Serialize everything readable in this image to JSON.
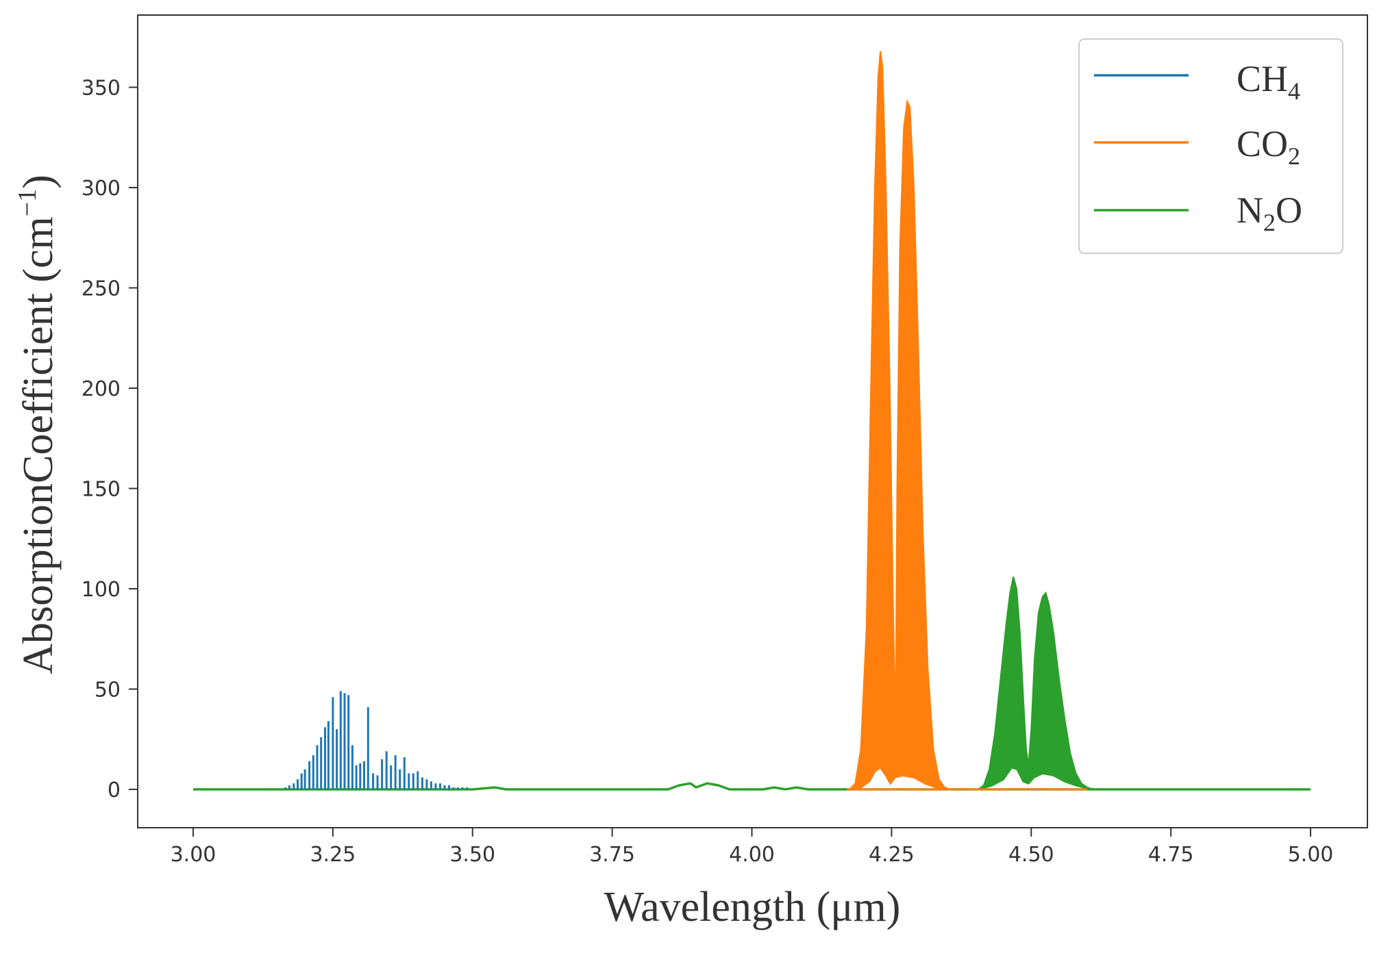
{
  "chart_data": {
    "type": "line",
    "xlabel": "Wavelength (μm)",
    "ylabel": "AbsorptionCoefficient (cm",
    "ylabel_superscript": "−1",
    "ylabel_close": ")",
    "xlim": [
      3.0,
      5.0
    ],
    "ylim": [
      0,
      375
    ],
    "xticks": [
      "3.00",
      "3.25",
      "3.50",
      "3.75",
      "4.00",
      "4.25",
      "4.50",
      "4.75",
      "5.00"
    ],
    "xtick_values": [
      3.0,
      3.25,
      3.5,
      3.75,
      4.0,
      4.25,
      4.5,
      4.75,
      5.0
    ],
    "yticks": [
      "0",
      "50",
      "100",
      "150",
      "200",
      "250",
      "300",
      "350"
    ],
    "ytick_values": [
      0,
      50,
      100,
      150,
      200,
      250,
      300,
      350
    ],
    "grid": false,
    "legend_position": "top-right",
    "series": [
      {
        "name": "CH4",
        "label_main": "CH",
        "label_sub": "4",
        "color": "#1f77b4",
        "style": "dense-lines",
        "lines": [
          [
            3.165,
            1
          ],
          [
            3.172,
            2
          ],
          [
            3.18,
            3
          ],
          [
            3.187,
            5
          ],
          [
            3.194,
            8
          ],
          [
            3.2,
            10
          ],
          [
            3.208,
            14
          ],
          [
            3.215,
            17
          ],
          [
            3.222,
            22
          ],
          [
            3.229,
            26
          ],
          [
            3.236,
            31
          ],
          [
            3.242,
            34
          ],
          [
            3.25,
            46
          ],
          [
            3.257,
            30
          ],
          [
            3.264,
            49
          ],
          [
            3.271,
            48
          ],
          [
            3.278,
            47
          ],
          [
            3.285,
            22
          ],
          [
            3.292,
            12
          ],
          [
            3.299,
            13
          ],
          [
            3.306,
            14
          ],
          [
            3.313,
            41
          ],
          [
            3.322,
            8
          ],
          [
            3.33,
            7
          ],
          [
            3.338,
            15
          ],
          [
            3.346,
            19
          ],
          [
            3.354,
            12
          ],
          [
            3.362,
            17
          ],
          [
            3.37,
            10
          ],
          [
            3.378,
            16
          ],
          [
            3.386,
            8
          ],
          [
            3.394,
            8
          ],
          [
            3.402,
            9
          ],
          [
            3.41,
            6
          ],
          [
            3.418,
            5
          ],
          [
            3.426,
            4
          ],
          [
            3.434,
            3
          ],
          [
            3.442,
            3
          ],
          [
            3.45,
            2
          ],
          [
            3.458,
            2
          ],
          [
            3.466,
            1
          ],
          [
            3.474,
            1
          ],
          [
            3.482,
            1
          ],
          [
            3.49,
            1
          ]
        ]
      },
      {
        "name": "CO2",
        "label_main": "CO",
        "label_sub": "2",
        "color": "#ff7f0e",
        "style": "filled-band",
        "upper": [
          [
            4.175,
            0
          ],
          [
            4.185,
            3
          ],
          [
            4.195,
            20
          ],
          [
            4.205,
            80
          ],
          [
            4.213,
            200
          ],
          [
            4.22,
            300
          ],
          [
            4.226,
            355
          ],
          [
            4.23,
            368
          ],
          [
            4.234,
            360
          ],
          [
            4.24,
            300
          ],
          [
            4.247,
            200
          ],
          [
            4.253,
            90
          ],
          [
            4.257,
            30
          ],
          [
            4.26,
            150
          ],
          [
            4.265,
            270
          ],
          [
            4.272,
            330
          ],
          [
            4.278,
            343
          ],
          [
            4.283,
            340
          ],
          [
            4.29,
            300
          ],
          [
            4.298,
            220
          ],
          [
            4.306,
            130
          ],
          [
            4.315,
            60
          ],
          [
            4.325,
            20
          ],
          [
            4.335,
            5
          ],
          [
            4.345,
            1
          ],
          [
            4.355,
            0
          ]
        ],
        "lower": [
          [
            4.175,
            0
          ],
          [
            4.195,
            1
          ],
          [
            4.21,
            4
          ],
          [
            4.22,
            9
          ],
          [
            4.23,
            11
          ],
          [
            4.24,
            7
          ],
          [
            4.248,
            3
          ],
          [
            4.256,
            6
          ],
          [
            4.27,
            7
          ],
          [
            4.29,
            6
          ],
          [
            4.31,
            3
          ],
          [
            4.33,
            1
          ],
          [
            4.355,
            0
          ]
        ]
      },
      {
        "name": "N2O",
        "label_main": "N",
        "label_sub": "2",
        "label_tail": "O",
        "color": "#2ca02c",
        "style": "filled-band",
        "baseline_bumps": [
          [
            3.0,
            0
          ],
          [
            3.5,
            0
          ],
          [
            3.54,
            1
          ],
          [
            3.56,
            0
          ],
          [
            3.85,
            0
          ],
          [
            3.87,
            2
          ],
          [
            3.89,
            3
          ],
          [
            3.9,
            1
          ],
          [
            3.92,
            3
          ],
          [
            3.94,
            2
          ],
          [
            3.96,
            0
          ],
          [
            4.02,
            0
          ],
          [
            4.04,
            1
          ],
          [
            4.06,
            0
          ],
          [
            4.08,
            1
          ],
          [
            4.1,
            0
          ],
          [
            4.6,
            0
          ],
          [
            5.0,
            0
          ]
        ],
        "upper": [
          [
            4.405,
            0
          ],
          [
            4.415,
            2
          ],
          [
            4.425,
            10
          ],
          [
            4.435,
            28
          ],
          [
            4.445,
            55
          ],
          [
            4.455,
            82
          ],
          [
            4.462,
            98
          ],
          [
            4.468,
            106
          ],
          [
            4.474,
            100
          ],
          [
            4.48,
            78
          ],
          [
            4.486,
            45
          ],
          [
            4.491,
            20
          ],
          [
            4.495,
            12
          ],
          [
            4.5,
            30
          ],
          [
            4.506,
            65
          ],
          [
            4.513,
            88
          ],
          [
            4.52,
            96
          ],
          [
            4.526,
            98
          ],
          [
            4.532,
            92
          ],
          [
            4.54,
            78
          ],
          [
            4.55,
            55
          ],
          [
            4.56,
            35
          ],
          [
            4.57,
            18
          ],
          [
            4.58,
            8
          ],
          [
            4.59,
            3
          ],
          [
            4.6,
            1
          ],
          [
            4.61,
            0
          ]
        ],
        "lower": [
          [
            4.405,
            0
          ],
          [
            4.43,
            2
          ],
          [
            4.45,
            5
          ],
          [
            4.465,
            11
          ],
          [
            4.475,
            10
          ],
          [
            4.486,
            4
          ],
          [
            4.495,
            3
          ],
          [
            4.505,
            6
          ],
          [
            4.52,
            8
          ],
          [
            4.54,
            7
          ],
          [
            4.56,
            4
          ],
          [
            4.58,
            2
          ],
          [
            4.61,
            0
          ]
        ]
      }
    ]
  }
}
